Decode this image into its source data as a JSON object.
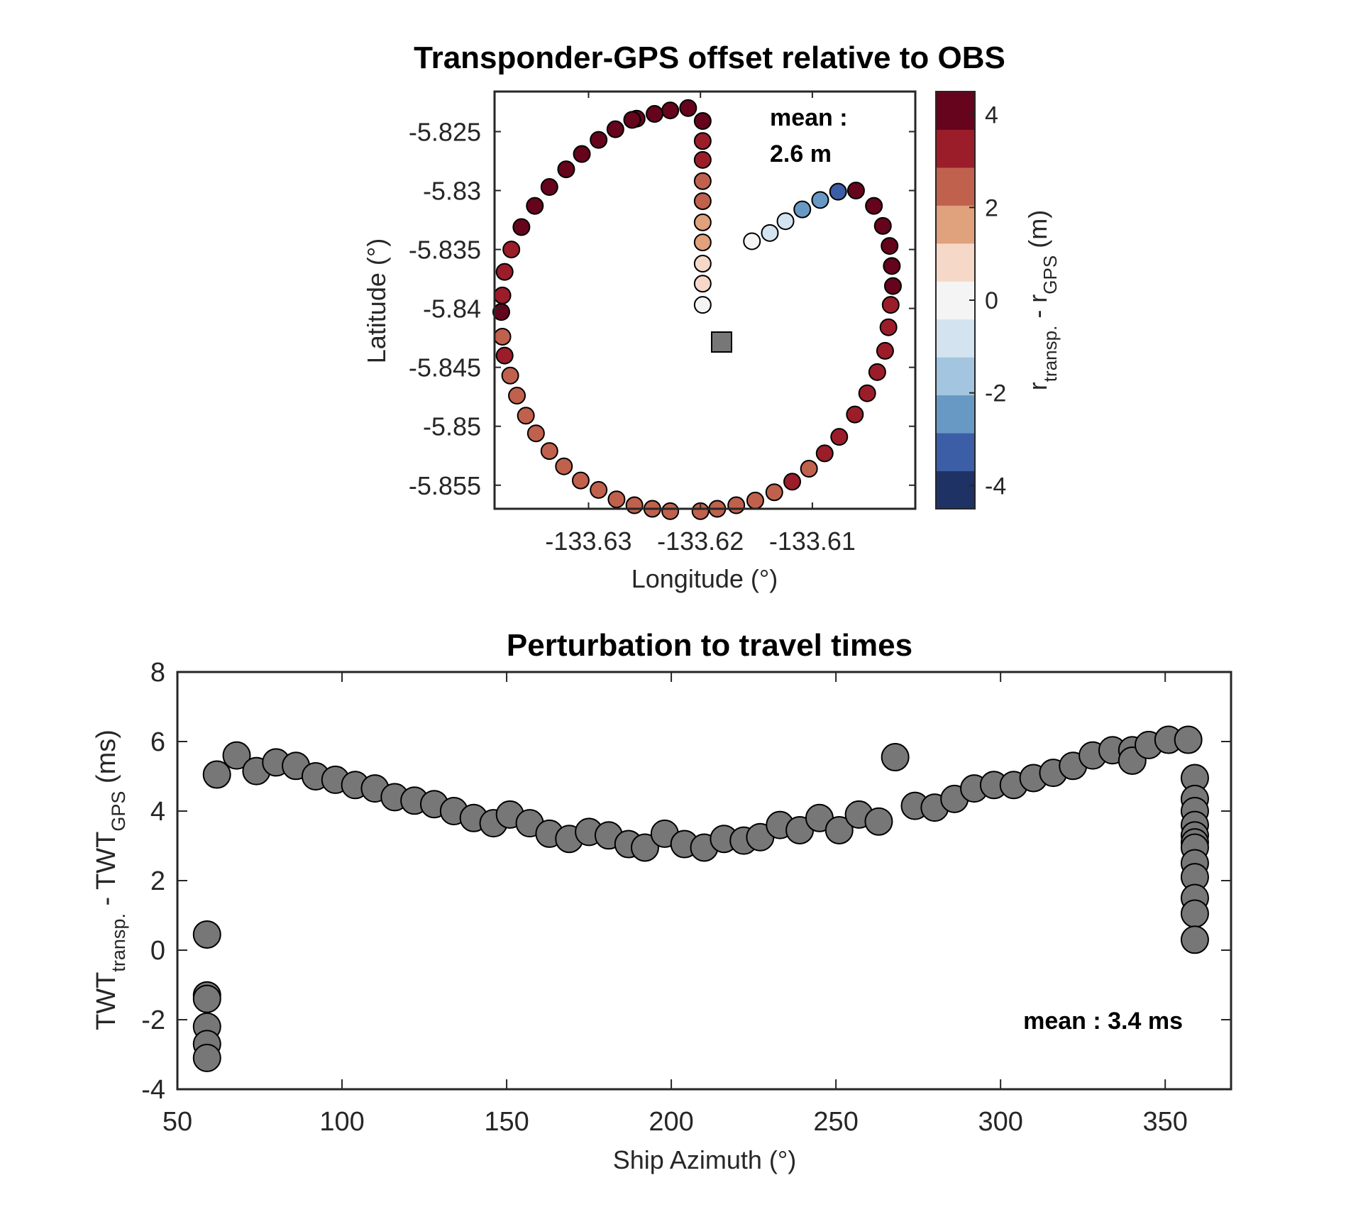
{
  "chart_data": [
    {
      "type": "scatter",
      "title": "Transponder-GPS offset relative to OBS",
      "xlabel": "Longitude (°)",
      "ylabel": "Latitude (°)",
      "xlim": [
        -133.6384,
        -133.6008
      ],
      "ylim": [
        -5.857,
        -5.8216
      ],
      "xticks": [
        -133.63,
        -133.62,
        -133.61
      ],
      "xtick_labels": [
        "-133.63",
        "-133.62",
        "-133.61"
      ],
      "yticks": [
        -5.825,
        -5.83,
        -5.835,
        -5.84,
        -5.845,
        -5.85,
        -5.855
      ],
      "ytick_labels": [
        "-5.825",
        "-5.83",
        "-5.835",
        "-5.84",
        "-5.845",
        "-5.85",
        "-5.855"
      ],
      "annotation": [
        "mean :",
        "2.6 m"
      ],
      "obs_marker": {
        "lon": -133.6182,
        "lat": -5.8434,
        "color": "#777777"
      },
      "colorbar": {
        "label_main": "r",
        "label_sub1": "transp.",
        "label_mid": " - r",
        "label_sub2": "GPS",
        "label_end": " (m)",
        "range": [
          -4.5,
          4.5
        ],
        "ticks": [
          4,
          2,
          0,
          -2,
          -4
        ],
        "tick_labels": [
          "4",
          "2",
          "0",
          "-2",
          "-4"
        ],
        "colors": [
          "#1f3265",
          "#3c5ea6",
          "#6899c5",
          "#a3c5df",
          "#d3e3ef",
          "#f4f4f4",
          "#f6d8c9",
          "#e0a17d",
          "#c0614d",
          "#9b1d2a",
          "#65041c"
        ]
      },
      "points": [
        [
          -133.6198,
          -5.8397,
          0.2
        ],
        [
          -133.6198,
          -5.8379,
          0.5
        ],
        [
          -133.6198,
          -5.8362,
          1.0
        ],
        [
          -133.6198,
          -5.8344,
          1.5
        ],
        [
          -133.6198,
          -5.8327,
          2.0
        ],
        [
          -133.6198,
          -5.8309,
          2.5
        ],
        [
          -133.6198,
          -5.8292,
          2.8
        ],
        [
          -133.6198,
          -5.8274,
          3.1
        ],
        [
          -133.6198,
          -5.8258,
          3.5
        ],
        [
          -133.6198,
          -5.8241,
          4.2
        ],
        [
          -133.6211,
          -5.823,
          4.3
        ],
        [
          -133.6227,
          -5.8232,
          4.4
        ],
        [
          -133.6241,
          -5.8235,
          4.4
        ],
        [
          -133.6257,
          -5.8239,
          4.4
        ],
        [
          -133.6261,
          -5.824,
          3.8
        ],
        [
          -133.6276,
          -5.8248,
          4.2
        ],
        [
          -133.6291,
          -5.8257,
          4.3
        ],
        [
          -133.6306,
          -5.8269,
          4.4
        ],
        [
          -133.632,
          -5.8282,
          4.4
        ],
        [
          -133.6335,
          -5.8297,
          4.4
        ],
        [
          -133.6348,
          -5.8313,
          4.3
        ],
        [
          -133.636,
          -5.8331,
          3.9
        ],
        [
          -133.6369,
          -5.835,
          3.5
        ],
        [
          -133.6375,
          -5.8369,
          3.4
        ],
        [
          -133.6377,
          -5.8389,
          3.6
        ],
        [
          -133.6378,
          -5.8403,
          4.5
        ],
        [
          -133.6377,
          -5.8424,
          2.8
        ],
        [
          -133.6375,
          -5.844,
          3.2
        ],
        [
          -133.637,
          -5.8457,
          2.5
        ],
        [
          -133.6364,
          -5.8474,
          2.6
        ],
        [
          -133.6356,
          -5.8491,
          2.6
        ],
        [
          -133.6347,
          -5.8506,
          2.5
        ],
        [
          -133.6335,
          -5.8521,
          2.5
        ],
        [
          -133.6322,
          -5.8534,
          2.5
        ],
        [
          -133.6307,
          -5.8546,
          2.5
        ],
        [
          -133.6291,
          -5.8554,
          2.6
        ],
        [
          -133.6275,
          -5.8562,
          2.6
        ],
        [
          -133.6259,
          -5.8567,
          2.5
        ],
        [
          -133.6243,
          -5.857,
          2.5
        ],
        [
          -133.6227,
          -5.8572,
          2.5
        ],
        [
          -133.62,
          -5.8572,
          2.5
        ],
        [
          -133.6185,
          -5.857,
          2.5
        ],
        [
          -133.6168,
          -5.8567,
          2.5
        ],
        [
          -133.6151,
          -5.8563,
          2.6
        ],
        [
          -133.6134,
          -5.8556,
          2.7
        ],
        [
          -133.6118,
          -5.8547,
          3.2
        ],
        [
          -133.6103,
          -5.8536,
          2.6
        ],
        [
          -133.6089,
          -5.8523,
          3.0
        ],
        [
          -133.6076,
          -5.8509,
          3.4
        ],
        [
          -133.6062,
          -5.849,
          3.5
        ],
        [
          -133.6051,
          -5.8472,
          3.4
        ],
        [
          -133.6042,
          -5.8454,
          3.3
        ],
        [
          -133.6035,
          -5.8436,
          3.2
        ],
        [
          -133.6032,
          -5.8416,
          3.3
        ],
        [
          -133.603,
          -5.8397,
          3.4
        ],
        [
          -133.6028,
          -5.8381,
          4.4
        ],
        [
          -133.6029,
          -5.8364,
          4.3
        ],
        [
          -133.6031,
          -5.8347,
          4.5
        ],
        [
          -133.6037,
          -5.833,
          4.4
        ],
        [
          -133.6045,
          -5.8313,
          4.2
        ],
        [
          -133.6061,
          -5.83,
          4.2
        ],
        [
          -133.6077,
          -5.8301,
          -3.2
        ],
        [
          -133.6093,
          -5.8308,
          -2.8
        ],
        [
          -133.6109,
          -5.8316,
          -2.2
        ],
        [
          -133.6124,
          -5.8326,
          -1.0
        ],
        [
          -133.6138,
          -5.8336,
          -0.6
        ],
        [
          -133.6154,
          -5.8343,
          0.2
        ]
      ]
    },
    {
      "type": "scatter",
      "title": "Perturbation to travel times",
      "xlabel": "Ship Azimuth (°)",
      "ylabel_main": "TWT",
      "ylabel_sub1": "transp.",
      "ylabel_mid": " - TWT",
      "ylabel_sub2": "GPS",
      "ylabel_end": " (ms)",
      "xlim": [
        50,
        370
      ],
      "ylim": [
        -4,
        8
      ],
      "xticks": [
        50,
        100,
        150,
        200,
        250,
        300,
        350
      ],
      "xtick_labels": [
        "50",
        "100",
        "150",
        "200",
        "250",
        "300",
        "350"
      ],
      "yticks": [
        -4,
        -2,
        0,
        2,
        4,
        6,
        8
      ],
      "ytick_labels": [
        "-4",
        "-2",
        "0",
        "2",
        "4",
        "6",
        "8"
      ],
      "annotation": "mean : 3.4 ms",
      "marker_color": "#777777",
      "points": [
        [
          59,
          0.45
        ],
        [
          59,
          -1.3
        ],
        [
          59,
          -1.4
        ],
        [
          59,
          -2.2
        ],
        [
          59,
          -2.7
        ],
        [
          59,
          -3.1
        ],
        [
          62,
          5.05
        ],
        [
          68,
          5.6
        ],
        [
          74,
          5.15
        ],
        [
          80,
          5.4
        ],
        [
          86,
          5.3
        ],
        [
          92,
          5.0
        ],
        [
          98,
          4.9
        ],
        [
          104,
          4.75
        ],
        [
          110,
          4.65
        ],
        [
          116,
          4.4
        ],
        [
          122,
          4.3
        ],
        [
          128,
          4.2
        ],
        [
          134,
          4.0
        ],
        [
          140,
          3.8
        ],
        [
          146,
          3.65
        ],
        [
          151,
          3.9
        ],
        [
          157,
          3.65
        ],
        [
          163,
          3.35
        ],
        [
          169,
          3.2
        ],
        [
          175,
          3.4
        ],
        [
          181,
          3.3
        ],
        [
          187,
          3.05
        ],
        [
          192,
          2.95
        ],
        [
          198,
          3.35
        ],
        [
          204,
          3.05
        ],
        [
          210,
          2.95
        ],
        [
          216,
          3.2
        ],
        [
          222,
          3.15
        ],
        [
          227,
          3.25
        ],
        [
          233,
          3.6
        ],
        [
          239,
          3.45
        ],
        [
          245,
          3.8
        ],
        [
          251,
          3.45
        ],
        [
          257,
          3.9
        ],
        [
          263,
          3.7
        ],
        [
          268,
          5.55
        ],
        [
          274,
          4.15
        ],
        [
          280,
          4.1
        ],
        [
          286,
          4.35
        ],
        [
          292,
          4.65
        ],
        [
          298,
          4.75
        ],
        [
          304,
          4.75
        ],
        [
          310,
          4.95
        ],
        [
          316,
          5.1
        ],
        [
          322,
          5.3
        ],
        [
          328,
          5.6
        ],
        [
          334,
          5.75
        ],
        [
          340,
          5.75
        ],
        [
          340,
          5.45
        ],
        [
          345,
          5.9
        ],
        [
          351,
          6.05
        ],
        [
          357,
          6.05
        ],
        [
          359,
          4.95
        ],
        [
          359,
          4.35
        ],
        [
          359,
          4.0
        ],
        [
          359,
          3.6
        ],
        [
          359,
          3.3
        ],
        [
          359,
          3.1
        ],
        [
          359,
          2.95
        ],
        [
          359,
          2.5
        ],
        [
          359,
          2.1
        ],
        [
          359,
          1.5
        ],
        [
          359,
          1.05
        ],
        [
          359,
          0.3
        ]
      ]
    }
  ]
}
